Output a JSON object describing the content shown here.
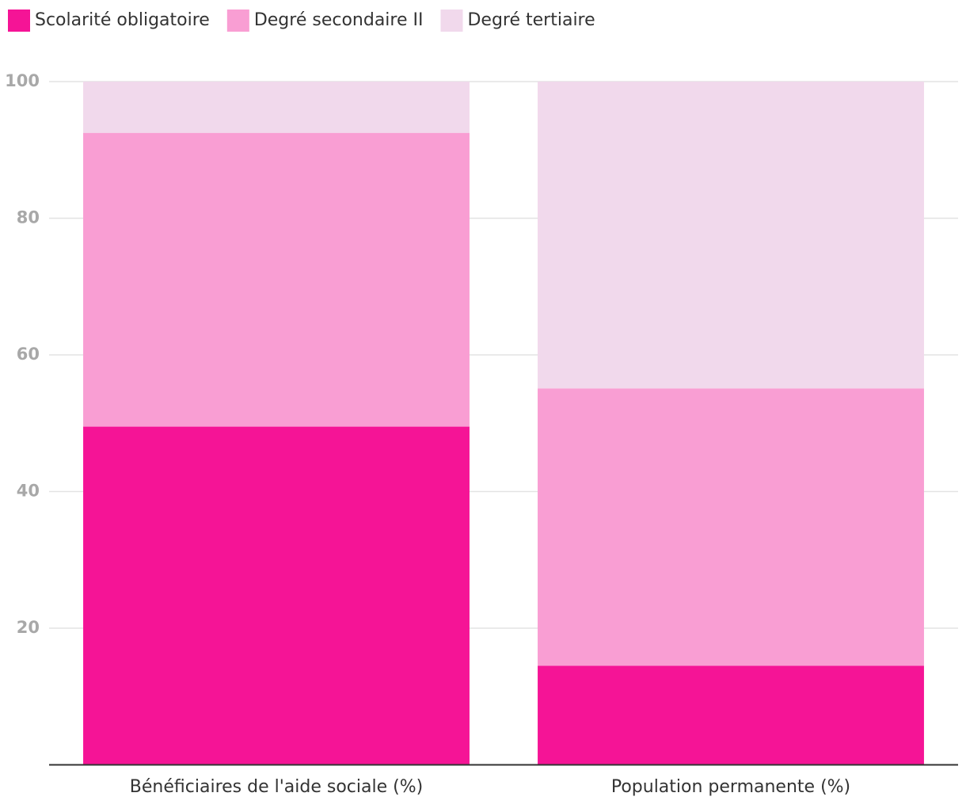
{
  "chart_data": {
    "type": "stacked_bar",
    "categories": [
      "Bénéficiaires de l'aide sociale (%)",
      "Population permanente (%)"
    ],
    "series": [
      {
        "name": "Scolarité obligatoire",
        "color": "#f51496",
        "values": [
          49.5,
          14.5
        ]
      },
      {
        "name": "Degré secondaire II",
        "color": "#f99ed3",
        "values": [
          43,
          40.6
        ]
      },
      {
        "name": "Degré tertiaire",
        "color": "#f1d9ec",
        "values": [
          7.5,
          44.9
        ]
      }
    ],
    "ylim": [
      0,
      100
    ],
    "yticks": [
      20,
      40,
      60,
      80,
      100
    ],
    "grid": true
  }
}
